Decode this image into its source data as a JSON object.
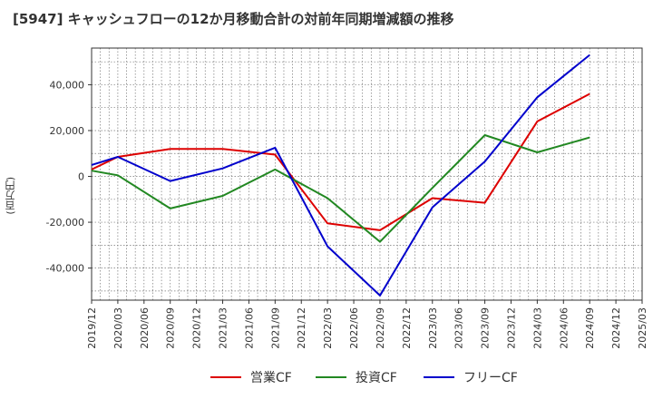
{
  "chart_data": {
    "type": "line",
    "title": "[5947]  キャッシュフローの12か月移動合計の対前年同期増減額の推移",
    "ylabel": "(百万円)",
    "xlabel": "",
    "ylim": [
      -54000,
      56000
    ],
    "y_ticks": [
      -40000,
      -20000,
      0,
      20000,
      40000
    ],
    "y_tick_labels": [
      "-40,000",
      "-20,000",
      "0",
      "20,000",
      "40,000"
    ],
    "x_tick_labels": [
      "2019/12",
      "2020/03",
      "2020/06",
      "2020/09",
      "2020/12",
      "2021/03",
      "2021/06",
      "2021/09",
      "2021/12",
      "2022/03",
      "2022/06",
      "2022/09",
      "2022/12",
      "2023/03",
      "2023/06",
      "2023/09",
      "2023/12",
      "2024/03",
      "2024/06",
      "2024/09",
      "2024/12",
      "2025/03"
    ],
    "grid": true,
    "legend_position": "bottom",
    "series": [
      {
        "name": "営業CF",
        "color": "#dd0000",
        "points": [
          [
            "2019/12",
            3000
          ],
          [
            "2020/03",
            8500
          ],
          [
            "2020/09",
            12000
          ],
          [
            "2021/03",
            12000
          ],
          [
            "2021/09",
            9500
          ],
          [
            "2022/03",
            -20500
          ],
          [
            "2022/09",
            -23500
          ],
          [
            "2023/03",
            -9500
          ],
          [
            "2023/09",
            -11500
          ],
          [
            "2024/03",
            24000
          ],
          [
            "2024/09",
            36000
          ]
        ]
      },
      {
        "name": "投資CF",
        "color": "#228822",
        "points": [
          [
            "2019/12",
            2500
          ],
          [
            "2020/03",
            500
          ],
          [
            "2020/09",
            -14000
          ],
          [
            "2021/03",
            -8500
          ],
          [
            "2021/09",
            3000
          ],
          [
            "2022/03",
            -9500
          ],
          [
            "2022/09",
            -28500
          ],
          [
            "2023/03",
            -5000
          ],
          [
            "2023/09",
            18000
          ],
          [
            "2024/03",
            10500
          ],
          [
            "2024/09",
            17000
          ]
        ]
      },
      {
        "name": "フリーCF",
        "color": "#0000cc",
        "points": [
          [
            "2019/12",
            5000
          ],
          [
            "2020/03",
            8500
          ],
          [
            "2020/09",
            -2000
          ],
          [
            "2021/03",
            3500
          ],
          [
            "2021/09",
            12500
          ],
          [
            "2022/03",
            -30500
          ],
          [
            "2022/09",
            -52000
          ],
          [
            "2023/03",
            -13500
          ],
          [
            "2023/09",
            6500
          ],
          [
            "2024/03",
            34500
          ],
          [
            "2024/09",
            53000
          ]
        ]
      }
    ]
  }
}
